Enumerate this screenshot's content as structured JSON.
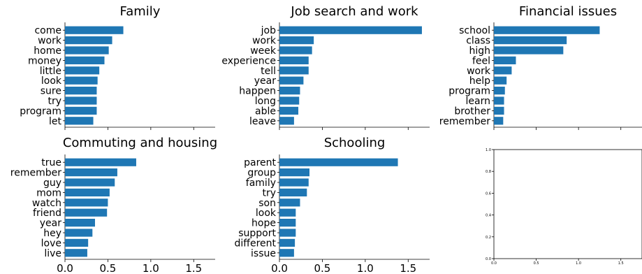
{
  "chart_data": [
    {
      "type": "bar",
      "orientation": "horizontal",
      "title": "Family",
      "categories": [
        "come",
        "work",
        "home",
        "money",
        "little",
        "look",
        "sure",
        "try",
        "program",
        "let"
      ],
      "values": [
        0.68,
        0.55,
        0.51,
        0.46,
        0.4,
        0.38,
        0.37,
        0.37,
        0.37,
        0.33
      ],
      "xlim": [
        0,
        1.75
      ],
      "xticks": [],
      "color": "#1f77b4"
    },
    {
      "type": "bar",
      "orientation": "horizontal",
      "title": "Job search and work",
      "categories": [
        "job",
        "work",
        "week",
        "experience",
        "tell",
        "year",
        "happen",
        "long",
        "able",
        "leave"
      ],
      "values": [
        1.66,
        0.4,
        0.38,
        0.34,
        0.34,
        0.28,
        0.24,
        0.23,
        0.22,
        0.17
      ],
      "xlim": [
        0,
        1.75
      ],
      "xticks": [],
      "color": "#1f77b4"
    },
    {
      "type": "bar",
      "orientation": "horizontal",
      "title": "Financial issues",
      "categories": [
        "school",
        "class",
        "high",
        "feel",
        "work",
        "help",
        "program",
        "learn",
        "brother",
        "remember"
      ],
      "values": [
        1.25,
        0.86,
        0.82,
        0.26,
        0.21,
        0.15,
        0.13,
        0.12,
        0.12,
        0.11
      ],
      "xlim": [
        0,
        1.75
      ],
      "xticks": [],
      "color": "#1f77b4"
    },
    {
      "type": "bar",
      "orientation": "horizontal",
      "title": "Commuting and housing",
      "categories": [
        "true",
        "remember",
        "guy",
        "mom",
        "watch",
        "friend",
        "year",
        "hey",
        "love",
        "live"
      ],
      "values": [
        0.83,
        0.61,
        0.58,
        0.52,
        0.5,
        0.49,
        0.35,
        0.32,
        0.27,
        0.26
      ],
      "xlim": [
        0,
        1.75
      ],
      "xticks": [
        "0.0",
        "0.5",
        "1.0",
        "1.5"
      ],
      "color": "#1f77b4"
    },
    {
      "type": "bar",
      "orientation": "horizontal",
      "title": "Schooling",
      "categories": [
        "parent",
        "group",
        "family",
        "try",
        "son",
        "look",
        "hope",
        "support",
        "different",
        "issue"
      ],
      "values": [
        1.38,
        0.35,
        0.34,
        0.32,
        0.24,
        0.19,
        0.19,
        0.19,
        0.18,
        0.17
      ],
      "xlim": [
        0,
        1.75
      ],
      "xticks": [
        "0.0",
        "0.5",
        "1.0",
        "1.5"
      ],
      "color": "#1f77b4"
    },
    {
      "type": "bar",
      "title": "",
      "categories": [],
      "values": [],
      "xlim": [
        0,
        1.75
      ],
      "ylim": [
        0,
        1.0
      ],
      "xticks": [
        "0.0",
        "0.5",
        "1.0",
        "1.5"
      ],
      "yticks": [
        "0.0",
        "0.2",
        "0.4",
        "0.6",
        "0.8",
        "1.0"
      ],
      "empty": true
    }
  ]
}
